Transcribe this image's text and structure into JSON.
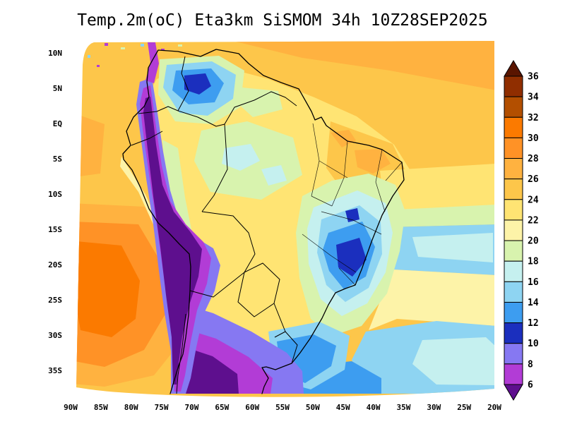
{
  "title": "Temp.2m(oC) Eta3km SiSMOM 34h 10Z28SEP2025",
  "axes": {
    "y_ticks": [
      "10N",
      "5N",
      "EQ",
      "5S",
      "10S",
      "15S",
      "20S",
      "25S",
      "30S",
      "35S"
    ],
    "x_ticks": [
      "90W",
      "85W",
      "80W",
      "75W",
      "70W",
      "65W",
      "60W",
      "55W",
      "50W",
      "45W",
      "40W",
      "35W",
      "30W",
      "25W",
      "20W"
    ]
  },
  "colorbar": {
    "levels": [
      36,
      34,
      32,
      30,
      28,
      26,
      24,
      22,
      20,
      18,
      16,
      14,
      12,
      10,
      8,
      6
    ],
    "colors_top_to_bottom": [
      "#5a1500",
      "#902e00",
      "#b34f00",
      "#fb7a00",
      "#ff9226",
      "#ffb240",
      "#fdc64a",
      "#ffe473",
      "#fdf3a8",
      "#d8f3ae",
      "#c5f0ef",
      "#8ed4f2",
      "#3d9df0",
      "#1b2fbe",
      "#8678f2",
      "#b23cd6",
      "#5e0f8e"
    ],
    "outline_color": "#000000"
  },
  "map": {
    "background": "#ffffff",
    "line_color": "#000000"
  },
  "chart_data": {
    "type": "heatmap",
    "title": "Temp.2m(oC) Eta3km SiSMOM 34h 10Z28SEP2025",
    "variable": "Temp.2m",
    "units": "oC",
    "model": "Eta3km SiSMOM",
    "forecast_hour": "34h",
    "valid_time": "10Z28SEP2025",
    "region": "South America",
    "lon_range_deg_w": [
      90,
      20
    ],
    "lat_range": [
      "10N",
      "35S"
    ],
    "contour_levels_c": [
      6,
      8,
      10,
      12,
      14,
      16,
      18,
      20,
      22,
      24,
      26,
      28,
      30,
      32,
      34,
      36
    ],
    "legend_position": "right",
    "notable_features": [
      "Cold corridor along the Andes with 2m temperatures below 6-10 C (purple/magenta)",
      "Cold pool over Southeast Brazil, 10-16 C (navy/blue core near 45W 20S)",
      "Cool patch over the northern Colombian Andes, 10-16 C",
      "Warm subtropical Pacific patch 26-32 C west of Chile/Peru",
      "Cold area over Patagonia/Pampas below 6-10 C at the southern edge",
      "Oceans mostly 24-26 C (gold); continental interior 22-24 C (yellow)",
      "Cool 14-18 C bands over the subtropical and southern Atlantic"
    ]
  }
}
